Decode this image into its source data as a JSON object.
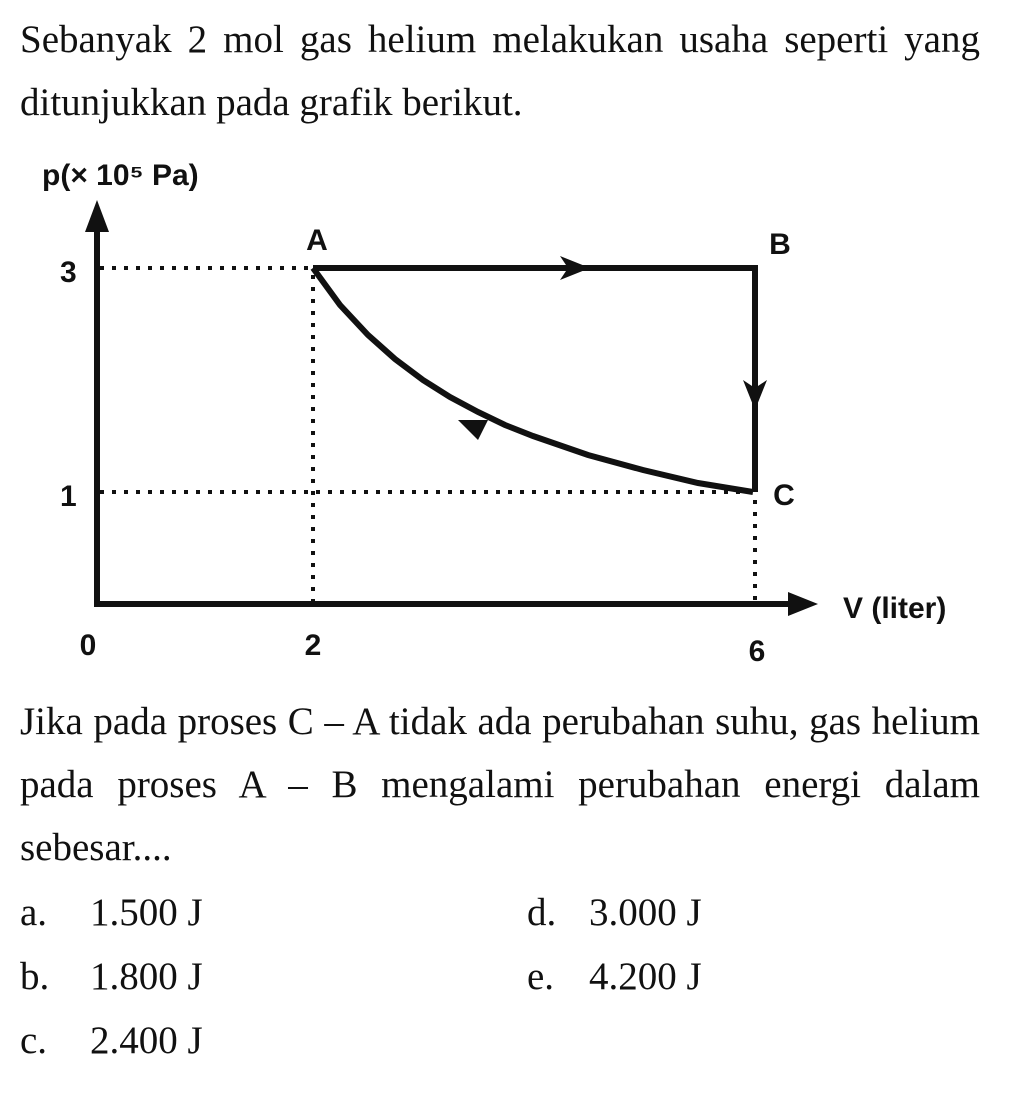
{
  "question": {
    "intro": "Sebanyak 2 mol gas helium melakukan usaha seperti yang ditunjukkan pada grafik berikut.",
    "figure": {
      "y_label": "p(× 10⁵ Pa)",
      "x_label": "V (liter)",
      "y_ticks": [
        "3",
        "1"
      ],
      "x_ticks": [
        "0",
        "2",
        "6"
      ],
      "points": [
        "A",
        "B",
        "C"
      ]
    },
    "body": "Jika pada proses C – A tidak ada perubahan suhu, gas helium pada proses A – B mengalami perubahan energi dalam sebesar....",
    "options": [
      {
        "letter": "a.",
        "text": "1.500 J"
      },
      {
        "letter": "b.",
        "text": "1.800 J"
      },
      {
        "letter": "c.",
        "text": "2.400 J"
      },
      {
        "letter": "d.",
        "text": "3.000 J"
      },
      {
        "letter": "e.",
        "text": "4.200 J"
      }
    ]
  }
}
